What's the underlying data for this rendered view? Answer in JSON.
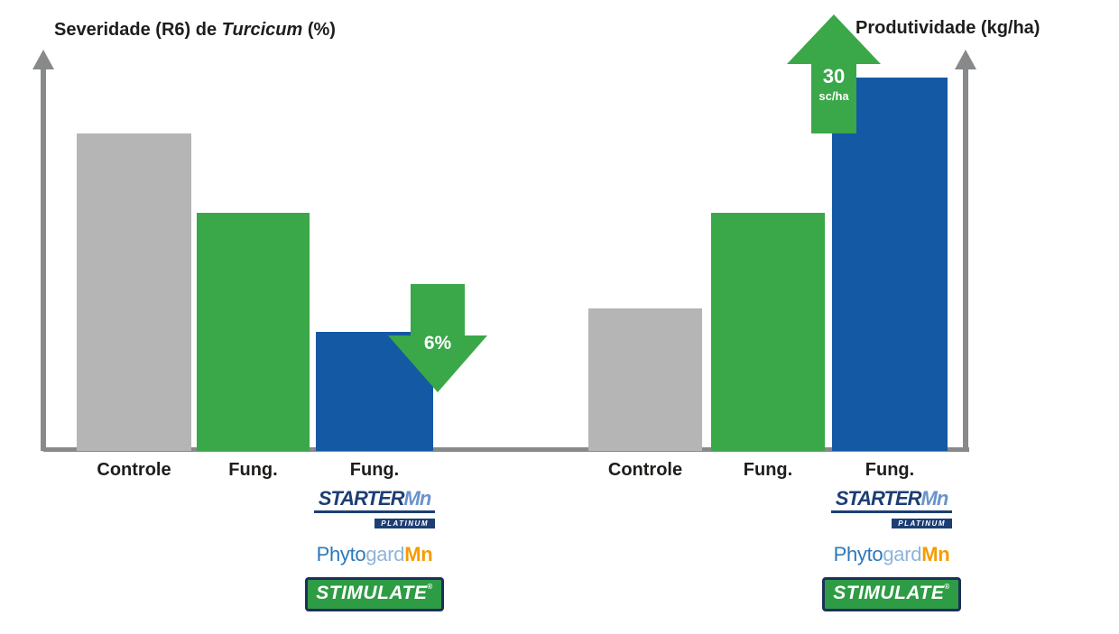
{
  "titles": {
    "left_prefix": "Severidade (R6) de ",
    "left_italic": "Turcicum",
    "left_suffix": " (%)",
    "right": "Produtividade (kg/ha)"
  },
  "chart_data": [
    {
      "type": "bar",
      "title": "Severidade (R6) de Turcicum (%)",
      "categories": [
        "Controle",
        "Fung.",
        "Fung."
      ],
      "values": [
        80,
        60,
        30
      ],
      "value_scale": "relative bar height 0-100 (no numeric ticks shown on axis)",
      "ylim": [
        0,
        100
      ],
      "bar_colors": [
        "#b5b5b6",
        "#3aa748",
        "#1459a3"
      ],
      "grid": false,
      "legend": "none",
      "annotation": {
        "shape": "down-arrow",
        "text": "6%",
        "color": "#3aa748"
      }
    },
    {
      "type": "bar",
      "title": "Produtividade (kg/ha)",
      "categories": [
        "Controle",
        "Fung.",
        "Fung."
      ],
      "values": [
        36,
        60,
        94
      ],
      "value_scale": "relative bar height 0-100 (no numeric ticks shown on axis)",
      "ylim": [
        0,
        100
      ],
      "bar_colors": [
        "#b5b5b6",
        "#3aa748",
        "#1459a3"
      ],
      "grid": false,
      "legend": "none",
      "annotation": {
        "shape": "up-arrow",
        "text_main": "30",
        "text_sub": "sc/ha",
        "color": "#3aa748"
      }
    }
  ],
  "brands": {
    "starter": {
      "name": "STARTER",
      "suffix": "Mn",
      "sub": "PLATINUM"
    },
    "phytogard": {
      "part1": "Phyto",
      "part2": "gard",
      "part3": "Mn"
    },
    "stimulate": {
      "name": "STIMULATE",
      "reg": "®"
    }
  },
  "colors": {
    "gray_bar": "#b5b5b6",
    "green": "#3aa748",
    "blue": "#1459a3",
    "axis": "#87898b",
    "text": "#1d1d1b"
  }
}
